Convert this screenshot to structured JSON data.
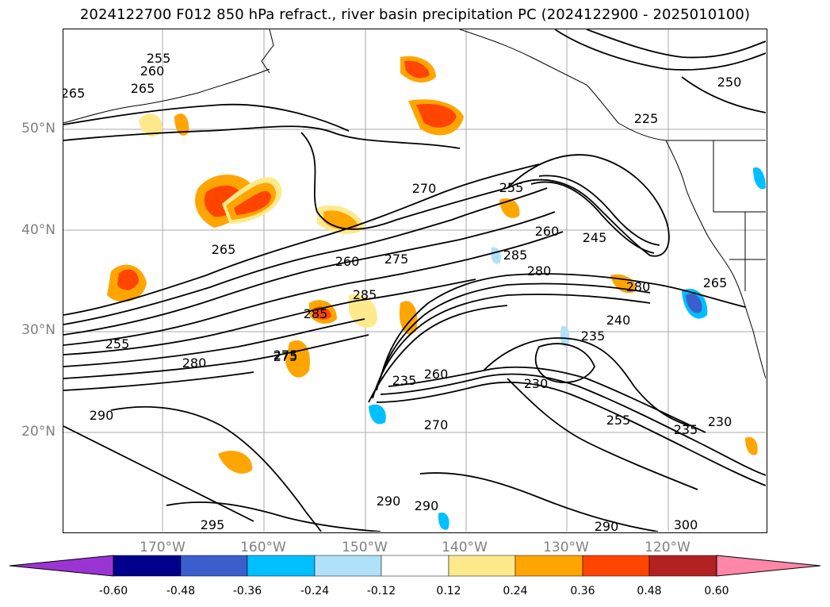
{
  "title": "2024122700 F012 850 hPa refract., river basin precipitation PC (2024122900 - 2025010100)",
  "lat_labels": [
    "50°N",
    "40°N",
    "30°N",
    "20°N"
  ],
  "lon_labels": [
    "170°W",
    "160°W",
    "150°W",
    "140°W",
    "130°W",
    "120°W"
  ],
  "contour_labels": [
    "255",
    "260",
    "265",
    "265",
    "270",
    "255",
    "260",
    "245",
    "285",
    "280",
    "280",
    "285",
    "285",
    "275",
    "265",
    "260",
    "255",
    "280",
    "275",
    "240",
    "235",
    "230",
    "255",
    "235",
    "230",
    "290",
    "290",
    "290",
    "295",
    "300",
    "290",
    "260",
    "235",
    "275",
    "270",
    "265",
    "250",
    "225"
  ],
  "colorbar": {
    "ticks": [
      "-0.60",
      "-0.48",
      "-0.36",
      "-0.24",
      "-0.12",
      "0.12",
      "0.24",
      "0.36",
      "0.48",
      "0.60"
    ],
    "colors": [
      "#9a35d3",
      "#00008b",
      "#3a5fcd",
      "#00bfff",
      "#afe1f8",
      "#ffffff",
      "#fee98c",
      "#ffa500",
      "#ff4500",
      "#b22222",
      "#ff86a8"
    ]
  }
}
